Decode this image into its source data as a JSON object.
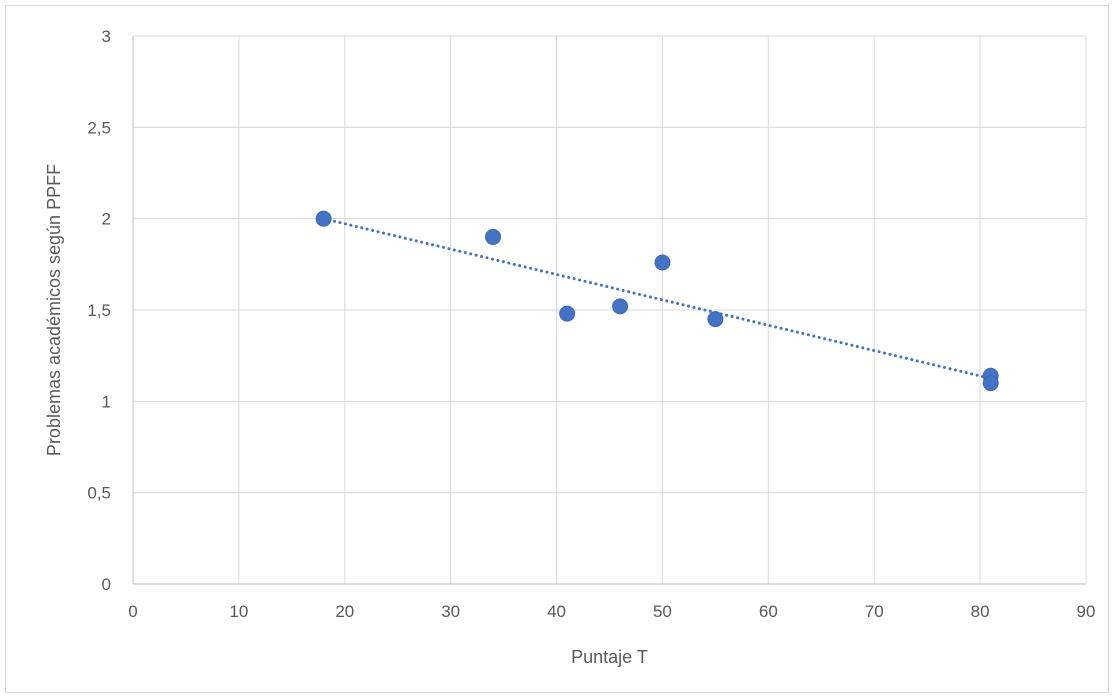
{
  "colors": {
    "series": "#4472c4",
    "grid": "#d9d9d9",
    "axis": "#bfbfbf",
    "text": "#595959"
  },
  "chart_data": {
    "type": "scatter",
    "title": "",
    "xlabel": "Puntaje T",
    "ylabel": "Problemas académicos según PPFF",
    "xlim": [
      0,
      90
    ],
    "ylim": [
      0,
      3
    ],
    "x_ticks": [
      0,
      10,
      20,
      30,
      40,
      50,
      60,
      70,
      80,
      90
    ],
    "x_tick_labels": [
      "0",
      "10",
      "20",
      "30",
      "40",
      "50",
      "60",
      "70",
      "80",
      "90"
    ],
    "y_ticks": [
      0,
      0.5,
      1,
      1.5,
      2,
      2.5,
      3
    ],
    "y_tick_labels": [
      "0",
      "0,5",
      "1",
      "1,5",
      "2",
      "2,5",
      "3"
    ],
    "grid": true,
    "legend": false,
    "series": [
      {
        "points": [
          {
            "x": 18,
            "y": 2.0
          },
          {
            "x": 34,
            "y": 1.9
          },
          {
            "x": 41,
            "y": 1.48
          },
          {
            "x": 46,
            "y": 1.52
          },
          {
            "x": 50,
            "y": 1.76
          },
          {
            "x": 55,
            "y": 1.45
          },
          {
            "x": 81,
            "y": 1.14
          },
          {
            "x": 81,
            "y": 1.1
          }
        ]
      }
    ],
    "trendline": {
      "type": "linear",
      "style": "dotted",
      "x_start": 18,
      "y_start": 2.0,
      "x_end": 81,
      "y_end": 1.125
    }
  }
}
